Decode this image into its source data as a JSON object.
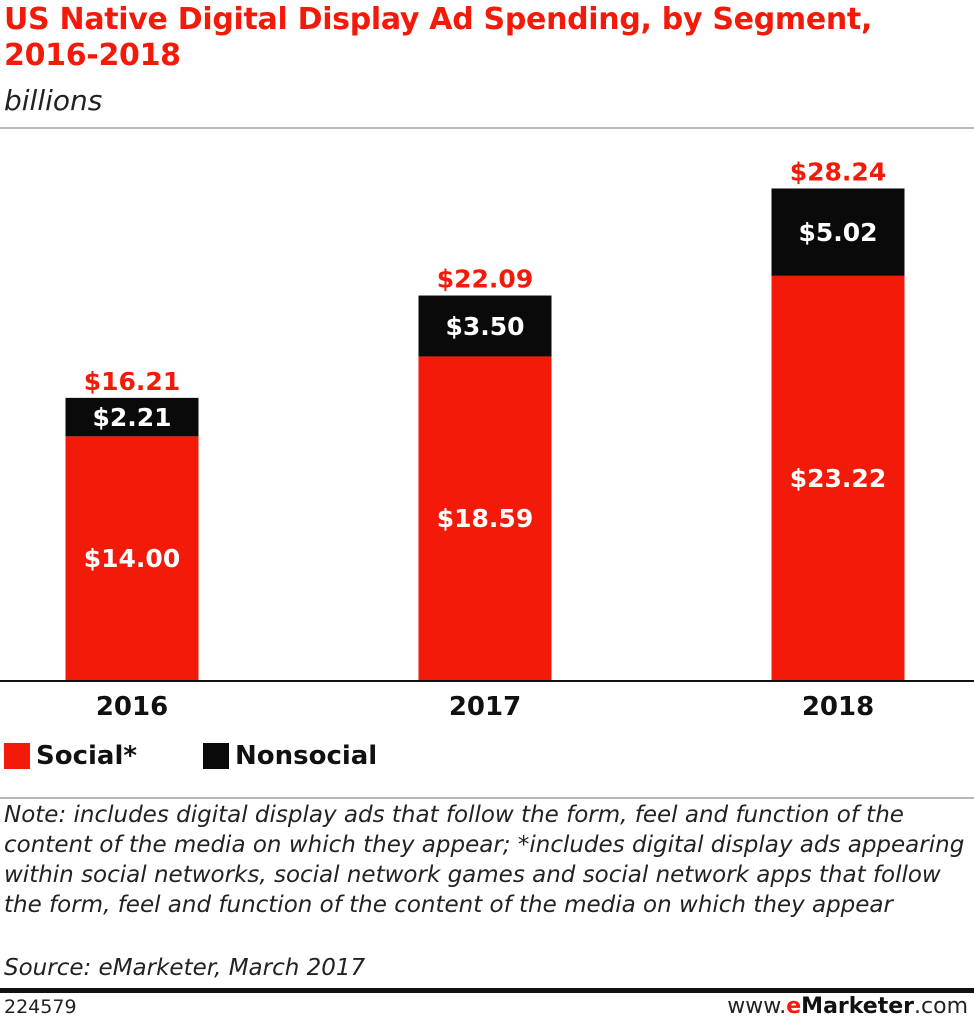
{
  "chart_data": {
    "type": "bar",
    "stacked": true,
    "title": "US Native Digital Display Ad Spending, by Segment, 2016-2018",
    "subtitle": "billions",
    "categories": [
      "2016",
      "2017",
      "2018"
    ],
    "series": [
      {
        "name": "Social*",
        "values": [
          14.0,
          18.59,
          23.22
        ],
        "labels": [
          "$14.00",
          "$18.59",
          "$23.22"
        ],
        "color": "#f31a0a"
      },
      {
        "name": "Nonsocial",
        "values": [
          2.21,
          3.5,
          5.02
        ],
        "labels": [
          "$2.21",
          "$3.50",
          "$5.02"
        ],
        "color": "#0a0a0a"
      }
    ],
    "totals": [
      16.21,
      22.09,
      28.24
    ],
    "total_labels": [
      "$16.21",
      "$22.09",
      "$28.24"
    ],
    "ylim": [
      0,
      31.6
    ],
    "grid": false,
    "legend_position": "bottom-left"
  },
  "note": "Note: includes digital display ads that follow the form, feel and function of the content of the media on which they appear; *includes digital display ads appearing within social networks, social network games and social network apps that follow the form, feel and function of the content of the media on which they appear",
  "source": "Source: eMarketer, March 2017",
  "chart_id": "224579",
  "brand": {
    "prefix": "www.",
    "e": "e",
    "name": "Marketer",
    "suffix": ".com"
  },
  "colors": {
    "accent": "#f31a0a",
    "total_label": "#f31a0a",
    "inner_label": "#ffffff"
  }
}
